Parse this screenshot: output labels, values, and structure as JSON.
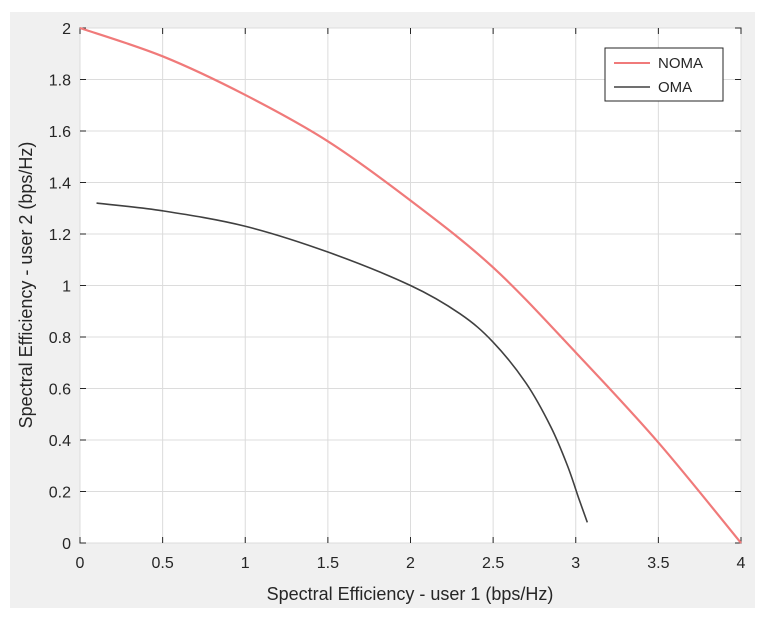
{
  "chart_data": {
    "type": "line",
    "xlabel": "Spectral Efficiency - user 1 (bps/Hz)",
    "ylabel": "Spectral Efficiency - user 2 (bps/Hz)",
    "xlim": [
      0,
      4
    ],
    "ylim": [
      0,
      2
    ],
    "x_ticks": [
      "0",
      "0.5",
      "1",
      "1.5",
      "2",
      "2.5",
      "3",
      "3.5",
      "4"
    ],
    "y_ticks": [
      "0",
      "0.2",
      "0.4",
      "0.6",
      "0.8",
      "1",
      "1.2",
      "1.4",
      "1.6",
      "1.8",
      "2"
    ],
    "grid": true,
    "legend_position": "top-right",
    "series": [
      {
        "name": "NOMA",
        "color": "#f07a7a",
        "points": [
          [
            0,
            2.0
          ],
          [
            0.5,
            1.89
          ],
          [
            1.0,
            1.74
          ],
          [
            1.5,
            1.56
          ],
          [
            2.0,
            1.33
          ],
          [
            2.5,
            1.07
          ],
          [
            3.0,
            0.74
          ],
          [
            3.5,
            0.39
          ],
          [
            4.0,
            0.0
          ]
        ]
      },
      {
        "name": "OMA",
        "color": "#404040",
        "points": [
          [
            0.1,
            1.32
          ],
          [
            0.5,
            1.29
          ],
          [
            1.0,
            1.23
          ],
          [
            1.5,
            1.13
          ],
          [
            2.0,
            1.0
          ],
          [
            2.3,
            0.89
          ],
          [
            2.5,
            0.78
          ],
          [
            2.7,
            0.62
          ],
          [
            2.85,
            0.45
          ],
          [
            2.95,
            0.3
          ],
          [
            3.02,
            0.17
          ],
          [
            3.07,
            0.08
          ]
        ]
      }
    ]
  }
}
